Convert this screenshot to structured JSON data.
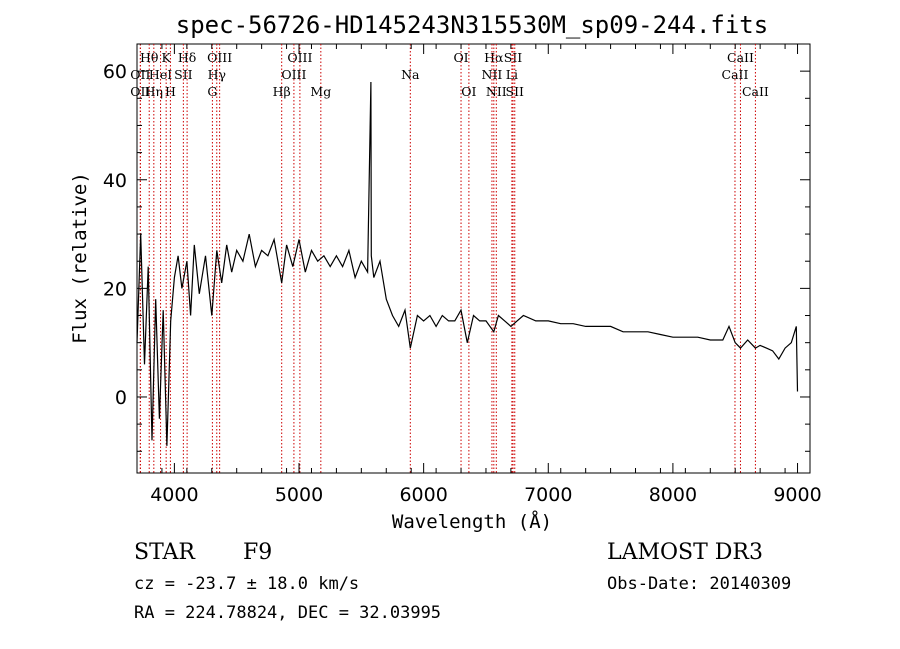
{
  "chart_data": {
    "type": "line",
    "title": "spec-56726-HD145243N315530M_sp09-244.fits",
    "xlabel": "Wavelength (Å)",
    "ylabel": "Flux (relative)",
    "xlim": [
      3700,
      9100
    ],
    "ylim": [
      -14,
      65
    ],
    "x_ticks": [
      4000,
      5000,
      6000,
      7000,
      8000,
      9000
    ],
    "x_tick_labels": [
      "4000",
      "5000",
      "6000",
      "7000",
      "8000",
      "9000"
    ],
    "y_ticks": [
      0,
      20,
      40,
      60
    ],
    "y_tick_labels": [
      "0",
      "20",
      "40",
      "60"
    ],
    "series": [
      {
        "name": "flux",
        "x": [
          3700,
          3730,
          3760,
          3790,
          3820,
          3850,
          3880,
          3910,
          3940,
          3970,
          4000,
          4030,
          4060,
          4100,
          4130,
          4160,
          4200,
          4250,
          4300,
          4340,
          4380,
          4420,
          4460,
          4500,
          4550,
          4600,
          4650,
          4700,
          4750,
          4800,
          4861,
          4900,
          4950,
          5000,
          5050,
          5100,
          5150,
          5200,
          5250,
          5300,
          5350,
          5400,
          5450,
          5500,
          5550,
          5577,
          5580,
          5600,
          5650,
          5700,
          5750,
          5800,
          5850,
          5893,
          5950,
          6000,
          6050,
          6100,
          6150,
          6200,
          6250,
          6300,
          6350,
          6400,
          6450,
          6500,
          6563,
          6600,
          6650,
          6700,
          6750,
          6800,
          6900,
          7000,
          7100,
          7200,
          7300,
          7400,
          7500,
          7600,
          7700,
          7800,
          7900,
          8000,
          8100,
          8200,
          8300,
          8400,
          8450,
          8500,
          8542,
          8600,
          8662,
          8700,
          8750,
          8800,
          8850,
          8900,
          8950,
          8990,
          9000
        ],
        "y": [
          10,
          30,
          6,
          24,
          -8,
          18,
          -4,
          16,
          -9,
          14,
          22,
          26,
          20,
          25,
          15,
          28,
          19,
          26,
          15,
          27,
          21,
          28,
          23,
          27,
          25,
          30,
          24,
          27,
          26,
          29,
          21,
          28,
          24,
          29,
          23,
          27,
          25,
          26,
          24,
          26,
          24,
          27,
          22,
          25,
          23,
          58,
          26,
          22,
          25,
          18,
          15,
          13,
          16,
          9,
          15,
          14,
          15,
          13,
          15,
          14,
          14,
          16,
          10,
          15,
          14,
          14,
          12,
          15,
          14,
          13,
          14,
          15,
          14,
          14,
          13.5,
          13.5,
          13,
          13,
          13,
          12,
          12,
          12,
          11.5,
          11,
          11,
          11,
          10.5,
          10.5,
          13,
          10,
          9,
          10.5,
          9,
          9.5,
          9,
          8.5,
          7,
          9,
          10,
          13,
          1
        ]
      }
    ],
    "lines": [
      {
        "name": "Hθ",
        "wavelength": 3798,
        "row": 0
      },
      {
        "name": "OII",
        "wavelength": 3727,
        "row": 1
      },
      {
        "name": "OII",
        "wavelength": 3727,
        "row": 2
      },
      {
        "name": "Hη",
        "wavelength": 3835,
        "row": 2
      },
      {
        "name": "K",
        "wavelength": 3934,
        "row": 0
      },
      {
        "name": "HeI",
        "wavelength": 3889,
        "row": 1
      },
      {
        "name": "H",
        "wavelength": 3968,
        "row": 2
      },
      {
        "name": "SII",
        "wavelength": 4072,
        "row": 1
      },
      {
        "name": "Hδ",
        "wavelength": 4102,
        "row": 0
      },
      {
        "name": "OIII",
        "wavelength": 4363,
        "row": 0
      },
      {
        "name": "Hγ",
        "wavelength": 4340,
        "row": 1
      },
      {
        "name": "G",
        "wavelength": 4305,
        "row": 2
      },
      {
        "name": "OIII",
        "wavelength": 5007,
        "row": 0
      },
      {
        "name": "OIII",
        "wavelength": 4959,
        "row": 1
      },
      {
        "name": "Hβ",
        "wavelength": 4861,
        "row": 2
      },
      {
        "name": "Mg",
        "wavelength": 5175,
        "row": 2
      },
      {
        "name": "Na",
        "wavelength": 5893,
        "row": 1
      },
      {
        "name": "OI",
        "wavelength": 6300,
        "row": 0
      },
      {
        "name": "OI",
        "wavelength": 6363,
        "row": 2
      },
      {
        "name": "Hα",
        "wavelength": 6563,
        "row": 0
      },
      {
        "name": "NII",
        "wavelength": 6548,
        "row": 1
      },
      {
        "name": "NII",
        "wavelength": 6583,
        "row": 2
      },
      {
        "name": "SII",
        "wavelength": 6717,
        "row": 0
      },
      {
        "name": "Li",
        "wavelength": 6708,
        "row": 1
      },
      {
        "name": "SII",
        "wavelength": 6731,
        "row": 2
      },
      {
        "name": "CaII",
        "wavelength": 8542,
        "row": 0
      },
      {
        "name": "CaII",
        "wavelength": 8498,
        "row": 1
      },
      {
        "name": "CaII",
        "wavelength": 8662,
        "row": 2
      }
    ]
  },
  "info": {
    "class": "STAR",
    "subclass": "F9",
    "survey": "LAMOST DR3",
    "cz": "cz = -23.7 ± 18.0 km/s",
    "obs_date": "Obs-Date: 20140309",
    "coords": "RA = 224.78824, DEC =  32.03995"
  }
}
